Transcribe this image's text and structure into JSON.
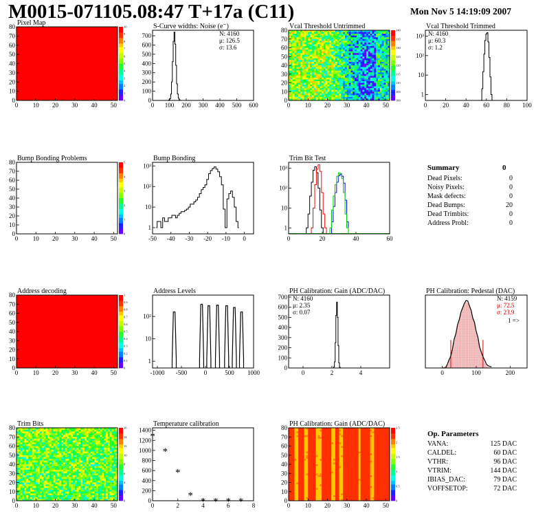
{
  "header": {
    "title": "M0015-071105.08:47 T+17a (C11)",
    "date": "Mon Nov  5 14:19:09 2007"
  },
  "colors": {
    "palette": [
      "#6600ff",
      "#1f1fff",
      "#0080ff",
      "#00c0ff",
      "#00ffe0",
      "#00ff90",
      "#20ff30",
      "#80ff00",
      "#c8ff00",
      "#ffff00",
      "#ffc800",
      "#ff8000",
      "#ff3000",
      "#ff0000"
    ],
    "map_red": "#ff0000",
    "trim_red": "#ff0000",
    "trim_blue": "#0000ff",
    "trim_green": "#00cc00",
    "ped_red": "#cc0000"
  },
  "summary": {
    "title": "Summary",
    "value": "0",
    "rows": [
      {
        "label": "Dead Pixels:",
        "value": "0"
      },
      {
        "label": "Noisy Pixels:",
        "value": "0"
      },
      {
        "label": "Mask defects:",
        "value": "0"
      },
      {
        "label": "Dead Bumps:",
        "value": "20"
      },
      {
        "label": "Dead Trimbits:",
        "value": "0"
      },
      {
        "label": "Address Probl:",
        "value": "0"
      }
    ]
  },
  "params": {
    "title": "Op. Parameters",
    "rows": [
      {
        "label": "VANA:",
        "value": "125 DAC"
      },
      {
        "label": "CALDEL:",
        "value": "60 DAC"
      },
      {
        "label": "VTHR:",
        "value": "96 DAC"
      },
      {
        "label": "VTRIM:",
        "value": "144 DAC"
      },
      {
        "label": "IBIAS_DAC:",
        "value": "79 DAC"
      },
      {
        "label": "VOFFSETOP:",
        "value": "72 DAC"
      }
    ]
  },
  "chart_data": [
    {
      "id": "pixel-map",
      "type": "heatmap",
      "title": "Pixel Map",
      "xlim": [
        0,
        52
      ],
      "ylim": [
        0,
        80
      ],
      "xticks": [
        "0",
        "10",
        "20",
        "30",
        "40",
        "50"
      ],
      "yticks": [
        "0",
        "10",
        "20",
        "30",
        "40",
        "50",
        "60",
        "70",
        "80"
      ],
      "zlim": [
        0,
        10
      ],
      "zticks": [
        "0",
        "1",
        "2",
        "3",
        "4",
        "5",
        "6",
        "7",
        "8",
        "9",
        "10"
      ],
      "fill": "uniform-max"
    },
    {
      "id": "scurve",
      "type": "histogram",
      "title": "S-Curve widths: Noise (e⁻)",
      "xlim": [
        0,
        600
      ],
      "ylim": [
        0,
        760
      ],
      "xticks": [
        "0",
        "100",
        "200",
        "300",
        "400",
        "500",
        "600"
      ],
      "yticks": [
        "0",
        "100",
        "200",
        "300",
        "400",
        "500",
        "600",
        "700"
      ],
      "stats": [
        "N: 4160",
        "μ: 126.5",
        "σ: 13.6"
      ],
      "x": [
        90,
        100,
        105,
        110,
        115,
        120,
        125,
        130,
        135,
        140,
        145,
        150,
        155,
        160,
        165,
        170
      ],
      "values": [
        0,
        5,
        20,
        70,
        200,
        420,
        640,
        740,
        610,
        380,
        180,
        70,
        25,
        8,
        0,
        0
      ]
    },
    {
      "id": "vcal-untrimmed",
      "type": "heatmap",
      "title": "Vcal Threshold Untrimmed",
      "xlim": [
        0,
        52
      ],
      "ylim": [
        0,
        80
      ],
      "xticks": [
        "0",
        "10",
        "20",
        "30",
        "40",
        "50"
      ],
      "yticks": [
        "0",
        "10",
        "20",
        "30",
        "40",
        "50",
        "60",
        "70",
        "80"
      ],
      "zlim": [
        100,
        140
      ],
      "zticks": [
        "100",
        "105",
        "110",
        "115",
        "120",
        "125",
        "130",
        "135",
        "140"
      ],
      "fill": "noise-cool-right"
    },
    {
      "id": "vcal-trimmed",
      "type": "histogram",
      "title": "Vcal Threshold Trimmed",
      "log": true,
      "xlim": [
        0,
        100
      ],
      "ylim": [
        0.5,
        2000
      ],
      "xticks": [
        "0",
        "20",
        "40",
        "60",
        "80",
        "100"
      ],
      "yticks": [
        "1",
        "10",
        "10²",
        "10³"
      ],
      "stats": [
        "N: 4160",
        "μ: 60.3",
        "σ:  1.2"
      ],
      "x": [
        55,
        56,
        57,
        58,
        59,
        60,
        61,
        62,
        63,
        64,
        65,
        66
      ],
      "values": [
        0,
        2,
        15,
        120,
        600,
        1300,
        1500,
        500,
        80,
        8,
        1,
        0
      ]
    },
    {
      "id": "bump-problems",
      "type": "heatmap",
      "title": "Bump Bonding Problems",
      "xlim": [
        0,
        52
      ],
      "ylim": [
        0,
        80
      ],
      "xticks": [
        "0",
        "10",
        "20",
        "30",
        "40",
        "50"
      ],
      "yticks": [
        "0",
        "10",
        "20",
        "30",
        "40",
        "50",
        "60",
        "70",
        "80"
      ],
      "zlim": [
        0,
        5
      ],
      "zticks": [
        "0",
        "1",
        "2",
        "3",
        "4",
        "5"
      ],
      "fill": "empty"
    },
    {
      "id": "bump-bonding",
      "type": "histogram",
      "title": "Bump Bonding",
      "log": true,
      "xlim": [
        -50,
        5
      ],
      "ylim": [
        0.5,
        1500
      ],
      "xticks": [
        "-50",
        "-40",
        "-30",
        "-20",
        "-10",
        "0"
      ],
      "yticks": [
        "1",
        "10",
        "10²",
        "10³"
      ],
      "x": [
        -48,
        -47,
        -46,
        -45,
        -44,
        -43,
        -42,
        -41,
        -40,
        -39,
        -38,
        -37,
        -36,
        -35,
        -34,
        -33,
        -32,
        -31,
        -30,
        -29,
        -28,
        -27,
        -26,
        -25,
        -24,
        -23,
        -22,
        -21,
        -20,
        -19,
        -18,
        -17,
        -16,
        -15,
        -14,
        -13,
        -12,
        -11,
        -10,
        -9,
        -8,
        -7,
        -6,
        -5,
        -4,
        -3
      ],
      "values": [
        1,
        2,
        2,
        1,
        3,
        2,
        2,
        3,
        3,
        4,
        4,
        3,
        4,
        5,
        6,
        6,
        7,
        8,
        10,
        14,
        14,
        18,
        22,
        30,
        45,
        70,
        90,
        120,
        220,
        420,
        600,
        750,
        900,
        700,
        520,
        300,
        120,
        8,
        1,
        25,
        45,
        60,
        30,
        10,
        2,
        1
      ]
    },
    {
      "id": "trim-bit",
      "type": "histogram",
      "title": "Trim Bit Test",
      "log": true,
      "xlim": [
        0,
        60
      ],
      "ylim": [
        0.5,
        2000
      ],
      "xticks": [
        "0",
        "20",
        "40",
        "60"
      ],
      "yticks": [
        "1",
        "10",
        "10²",
        "10³"
      ],
      "series": [
        {
          "color": "black",
          "x": [
            10,
            11,
            12,
            13,
            14,
            15,
            16,
            17,
            18,
            19,
            20,
            21
          ],
          "values": [
            0,
            1,
            5,
            40,
            200,
            800,
            1200,
            600,
            100,
            8,
            1,
            0
          ]
        },
        {
          "color": "red",
          "x": [
            13,
            14,
            15,
            16,
            17,
            18,
            19,
            20,
            21,
            22,
            23
          ],
          "values": [
            0,
            1,
            10,
            150,
            900,
            1500,
            700,
            60,
            5,
            1,
            0
          ]
        },
        {
          "color": "blue",
          "x": [
            25,
            26,
            27,
            28,
            29,
            30,
            31,
            32,
            33,
            34,
            35,
            36
          ],
          "values": [
            0,
            2,
            12,
            60,
            200,
            420,
            500,
            400,
            180,
            25,
            2,
            0
          ]
        },
        {
          "color": "green",
          "x": [
            24,
            25,
            26,
            27,
            28,
            29,
            30,
            31,
            32,
            33,
            34,
            35,
            36
          ],
          "values": [
            0,
            1,
            8,
            40,
            150,
            400,
            600,
            550,
            300,
            60,
            5,
            1,
            0
          ]
        }
      ]
    },
    {
      "id": "address-decoding",
      "type": "heatmap",
      "title": "Address decoding",
      "xlim": [
        0,
        52
      ],
      "ylim": [
        0,
        80
      ],
      "xticks": [
        "0",
        "10",
        "20",
        "30",
        "40",
        "50"
      ],
      "yticks": [
        "0",
        "10",
        "20",
        "30",
        "40",
        "50",
        "60",
        "70",
        "80"
      ],
      "zlim": [
        0,
        1
      ],
      "zticks": [
        "0",
        "0.1",
        "0.2",
        "0.3",
        "0.4",
        "0.5",
        "0.6",
        "0.7",
        "0.8",
        "0.9",
        "1"
      ],
      "fill": "uniform-max"
    },
    {
      "id": "address-levels",
      "type": "histogram",
      "title": "Address Levels",
      "log": true,
      "xlim": [
        -1100,
        1000
      ],
      "ylim": [
        0.5,
        900
      ],
      "xticks": [
        "-1000",
        "-500",
        "0",
        "500",
        "1000"
      ],
      "yticks": [
        "1",
        "10",
        "10²"
      ],
      "peaks": [
        -650,
        -80,
        70,
        250,
        440,
        600,
        750
      ],
      "peak_heights": [
        160,
        350,
        300,
        320,
        300,
        250,
        160
      ]
    },
    {
      "id": "ph-gain",
      "type": "histogram",
      "title": "PH Calibration: Gain (ADC/DAC)",
      "xlim": [
        -1,
        6
      ],
      "ylim": [
        0,
        720
      ],
      "xticks": [
        "0",
        "2",
        "4"
      ],
      "yticks": [
        "0",
        "100",
        "200",
        "300",
        "400",
        "500",
        "600",
        "700"
      ],
      "stats": [
        "N: 4160",
        "μ: 2.35",
        "σ: 0.07"
      ],
      "x": [
        2.1,
        2.15,
        2.2,
        2.25,
        2.3,
        2.35,
        2.4,
        2.45,
        2.5,
        2.55,
        2.6
      ],
      "values": [
        0,
        10,
        60,
        250,
        520,
        650,
        500,
        220,
        50,
        8,
        0
      ]
    },
    {
      "id": "ph-pedestal",
      "type": "histogram",
      "title": "PH Calibration: Pedestal (DAC)",
      "xlim": [
        -50,
        250
      ],
      "ylim": [
        0,
        130
      ],
      "xticks": [
        "0",
        "100",
        "200"
      ],
      "yticks": [],
      "stats": [
        "N: 4159",
        "μ: 72.5",
        "σ: 23.9"
      ],
      "annotation": "1 =>",
      "cuts": [
        25,
        120
      ],
      "x": [
        0,
        5,
        10,
        15,
        20,
        25,
        30,
        35,
        40,
        45,
        50,
        55,
        60,
        65,
        70,
        75,
        80,
        85,
        90,
        95,
        100,
        105,
        110,
        115,
        120,
        125,
        130,
        135,
        140,
        145
      ],
      "values": [
        0,
        2,
        4,
        8,
        14,
        24,
        36,
        48,
        62,
        76,
        90,
        100,
        108,
        114,
        118,
        116,
        110,
        102,
        92,
        80,
        66,
        52,
        40,
        28,
        18,
        10,
        5,
        2,
        1,
        0
      ]
    },
    {
      "id": "trim-bits",
      "type": "heatmap",
      "title": "Trim Bits",
      "xlim": [
        0,
        52
      ],
      "ylim": [
        0,
        80
      ],
      "xticks": [
        "0",
        "10",
        "20",
        "30",
        "40",
        "50"
      ],
      "yticks": [
        "0",
        "10",
        "20",
        "30",
        "40",
        "50",
        "60",
        "70",
        "80"
      ],
      "zlim": [
        0,
        16
      ],
      "zticks": [
        "0",
        "2",
        "4",
        "6",
        "8",
        "10",
        "12",
        "14",
        "16"
      ],
      "fill": "noise-green"
    },
    {
      "id": "temperature",
      "type": "scatter",
      "title": "Temperature calibration",
      "xlim": [
        0,
        8
      ],
      "ylim": [
        0,
        1450
      ],
      "xticks": [
        "0",
        "2",
        "4",
        "6",
        "8"
      ],
      "yticks": [
        "0",
        "200",
        "400",
        "600",
        "800",
        "1000",
        "1200",
        "1400"
      ],
      "x": [
        0,
        1,
        2,
        3,
        4,
        5,
        6,
        7
      ],
      "y": [
        1300,
        1000,
        580,
        120,
        10,
        5,
        5,
        8
      ]
    },
    {
      "id": "ph-gain-map",
      "type": "heatmap",
      "title": "PH Calibration: Gain (ADC/DAC)",
      "xlim": [
        0,
        52
      ],
      "ylim": [
        0,
        80
      ],
      "xticks": [
        "0",
        "10",
        "20",
        "30",
        "40",
        "50"
      ],
      "yticks": [
        "0",
        "10",
        "20",
        "30",
        "40",
        "50",
        "60",
        "70",
        "80"
      ],
      "zlim": [
        0,
        2.5
      ],
      "zticks": [
        "0",
        "0.5",
        "1",
        "1.5",
        "2",
        "2.5"
      ],
      "fill": "column-stripes"
    }
  ]
}
